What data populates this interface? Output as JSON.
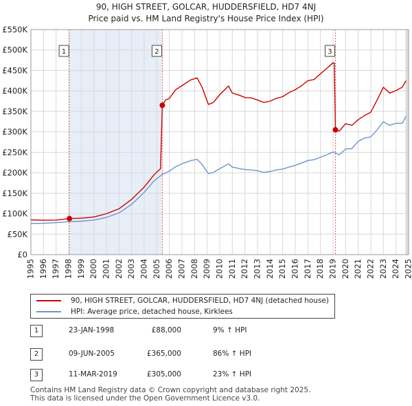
{
  "title_line1": "90, HIGH STREET, GOLCAR, HUDDERSFIELD, HD7 4NJ",
  "title_line2": "Price paid vs. HM Land Registry's House Price Index (HPI)",
  "legend": {
    "items": [
      {
        "label": "90, HIGH STREET, GOLCAR, HUDDERSFIELD, HD7 4NJ (detached house)",
        "color": "#cc0000"
      },
      {
        "label": "HPI: Average price, detached house, Kirklees",
        "color": "#6b95c9"
      }
    ]
  },
  "sales": [
    {
      "num": "1",
      "date": "23-JAN-1998",
      "price": "£88,000",
      "hpi": "9% ↑ HPI"
    },
    {
      "num": "2",
      "date": "09-JUN-2005",
      "price": "£365,000",
      "hpi": "86% ↑ HPI"
    },
    {
      "num": "3",
      "date": "11-MAR-2019",
      "price": "£305,000",
      "hpi": "23% ↑ HPI"
    }
  ],
  "footer": {
    "line1": "Contains HM Land Registry data © Crown copyright and database right 2025.",
    "line2": "This data is licensed under the Open Government Licence v3.0."
  },
  "chart_data": {
    "type": "line",
    "xlim": [
      1995,
      2025
    ],
    "ylim": [
      0,
      550000
    ],
    "yticks": [
      0,
      50000,
      100000,
      150000,
      200000,
      250000,
      300000,
      350000,
      400000,
      450000,
      500000,
      550000
    ],
    "ytick_labels": [
      "£0",
      "£50K",
      "£100K",
      "£150K",
      "£200K",
      "£250K",
      "£300K",
      "£350K",
      "£400K",
      "£450K",
      "£500K",
      "£550K"
    ],
    "xticks": [
      1995,
      1996,
      1997,
      1998,
      1999,
      2000,
      2001,
      2002,
      2003,
      2004,
      2005,
      2006,
      2007,
      2008,
      2009,
      2010,
      2011,
      2012,
      2013,
      2014,
      2015,
      2016,
      2017,
      2018,
      2019,
      2020,
      2021,
      2022,
      2023,
      2024,
      2025
    ],
    "grid": true,
    "shaded_region_between_markers": [
      1,
      2
    ],
    "markers": [
      {
        "label": "1",
        "x": 1998.06,
        "y": 88000
      },
      {
        "label": "2",
        "x": 2005.44,
        "y": 365000
      },
      {
        "label": "3",
        "x": 2019.19,
        "y": 305000
      }
    ],
    "series": [
      {
        "name": "90, HIGH STREET, GOLCAR, HUDDERSFIELD, HD7 4NJ (detached house)",
        "color": "#cc0000",
        "x": [
          1995,
          1996,
          1997,
          1998.06,
          1999,
          2000,
          2001,
          2002,
          2003,
          2004,
          2004.8,
          2005.3,
          2005.44,
          2005.7,
          2006,
          2006.5,
          2007,
          2007.7,
          2008.2,
          2008.6,
          2009.1,
          2009.5,
          2010,
          2010.7,
          2011,
          2011.6,
          2012,
          2012.5,
          2013,
          2013.5,
          2014,
          2014.5,
          2015,
          2015.5,
          2016,
          2016.5,
          2017,
          2017.5,
          2018,
          2018.5,
          2019,
          2019.1,
          2019.19,
          2019.5,
          2020,
          2020.5,
          2021,
          2021.5,
          2022,
          2022.5,
          2023,
          2023.5,
          2024,
          2024.5,
          2024.8
        ],
        "y": [
          85000,
          84000,
          84500,
          88000,
          89000,
          92000,
          100000,
          112000,
          135000,
          165000,
          196000,
          210000,
          365000,
          378000,
          382000,
          403000,
          413000,
          427000,
          432000,
          409000,
          367000,
          372000,
          391000,
          412000,
          395000,
          389000,
          384000,
          383000,
          378000,
          372000,
          375000,
          382000,
          386000,
          396000,
          403000,
          413000,
          425000,
          428000,
          442000,
          455000,
          469000,
          468000,
          305000,
          302000,
          320000,
          316000,
          330000,
          340000,
          348000,
          378000,
          409000,
          395000,
          401000,
          409000,
          425000
        ]
      },
      {
        "name": "HPI: Average price, detached house, Kirklees",
        "color": "#6b95c9",
        "x": [
          1995,
          1996,
          1997,
          1998.06,
          1999,
          2000,
          2001,
          2002,
          2003,
          2004,
          2004.8,
          2005.44,
          2006,
          2006.5,
          2007,
          2007.7,
          2008.2,
          2008.6,
          2009.1,
          2009.5,
          2010,
          2010.7,
          2011,
          2011.6,
          2012,
          2012.5,
          2013,
          2013.5,
          2014,
          2014.5,
          2015,
          2015.5,
          2016,
          2016.5,
          2017,
          2017.5,
          2018,
          2018.5,
          2019,
          2019.19,
          2019.5,
          2020,
          2020.5,
          2021,
          2021.5,
          2022,
          2022.5,
          2023,
          2023.5,
          2024,
          2024.5,
          2024.8
        ],
        "y": [
          76000,
          76500,
          78000,
          80500,
          81500,
          84500,
          91000,
          102000,
          123000,
          152000,
          181000,
          196000,
          204000,
          215000,
          222000,
          230000,
          233000,
          220000,
          198000,
          201000,
          210000,
          222000,
          214000,
          210000,
          208000,
          207000,
          205000,
          201000,
          203000,
          207000,
          209000,
          214000,
          218000,
          224000,
          230000,
          232000,
          238000,
          244000,
          251000,
          248000,
          244000,
          258000,
          259000,
          277000,
          285000,
          288000,
          305000,
          325000,
          316000,
          321000,
          321000,
          338000
        ]
      }
    ]
  }
}
